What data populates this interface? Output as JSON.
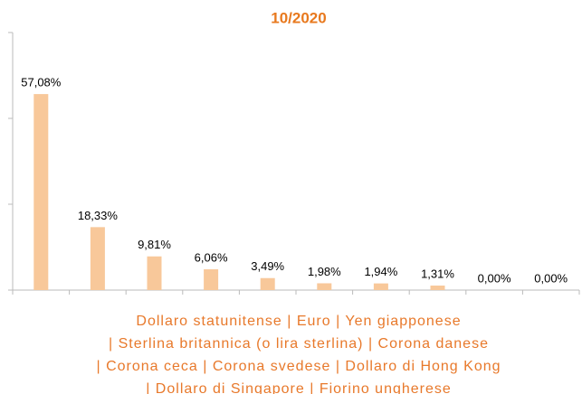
{
  "chart_data": {
    "type": "bar",
    "title": "10/2020",
    "categories": [
      null,
      null,
      null,
      null,
      null,
      null,
      null,
      null,
      null,
      null
    ],
    "values": [
      57.08,
      18.33,
      9.81,
      6.06,
      3.49,
      1.98,
      1.94,
      1.31,
      0.0,
      0.0
    ],
    "value_labels": [
      "57,08%",
      "18,33%",
      "9,81%",
      "6,06%",
      "3,49%",
      "1,98%",
      "1,94%",
      "1,31%",
      "0,00%",
      "0,00%"
    ],
    "color": "#f8c89a",
    "ylim": [
      0,
      75
    ],
    "yticks": [
      0,
      25,
      50,
      75
    ],
    "x_label": [
      "Dollaro statunitense | Euro | Yen giapponese",
      "| Sterlina britannica (o lira sterlina) | Corona danese",
      "| Corona ceca | Corona svedese | Dollaro di Hong Kong",
      "| Dollaro di Singapore | Fiorino ungherese"
    ]
  }
}
